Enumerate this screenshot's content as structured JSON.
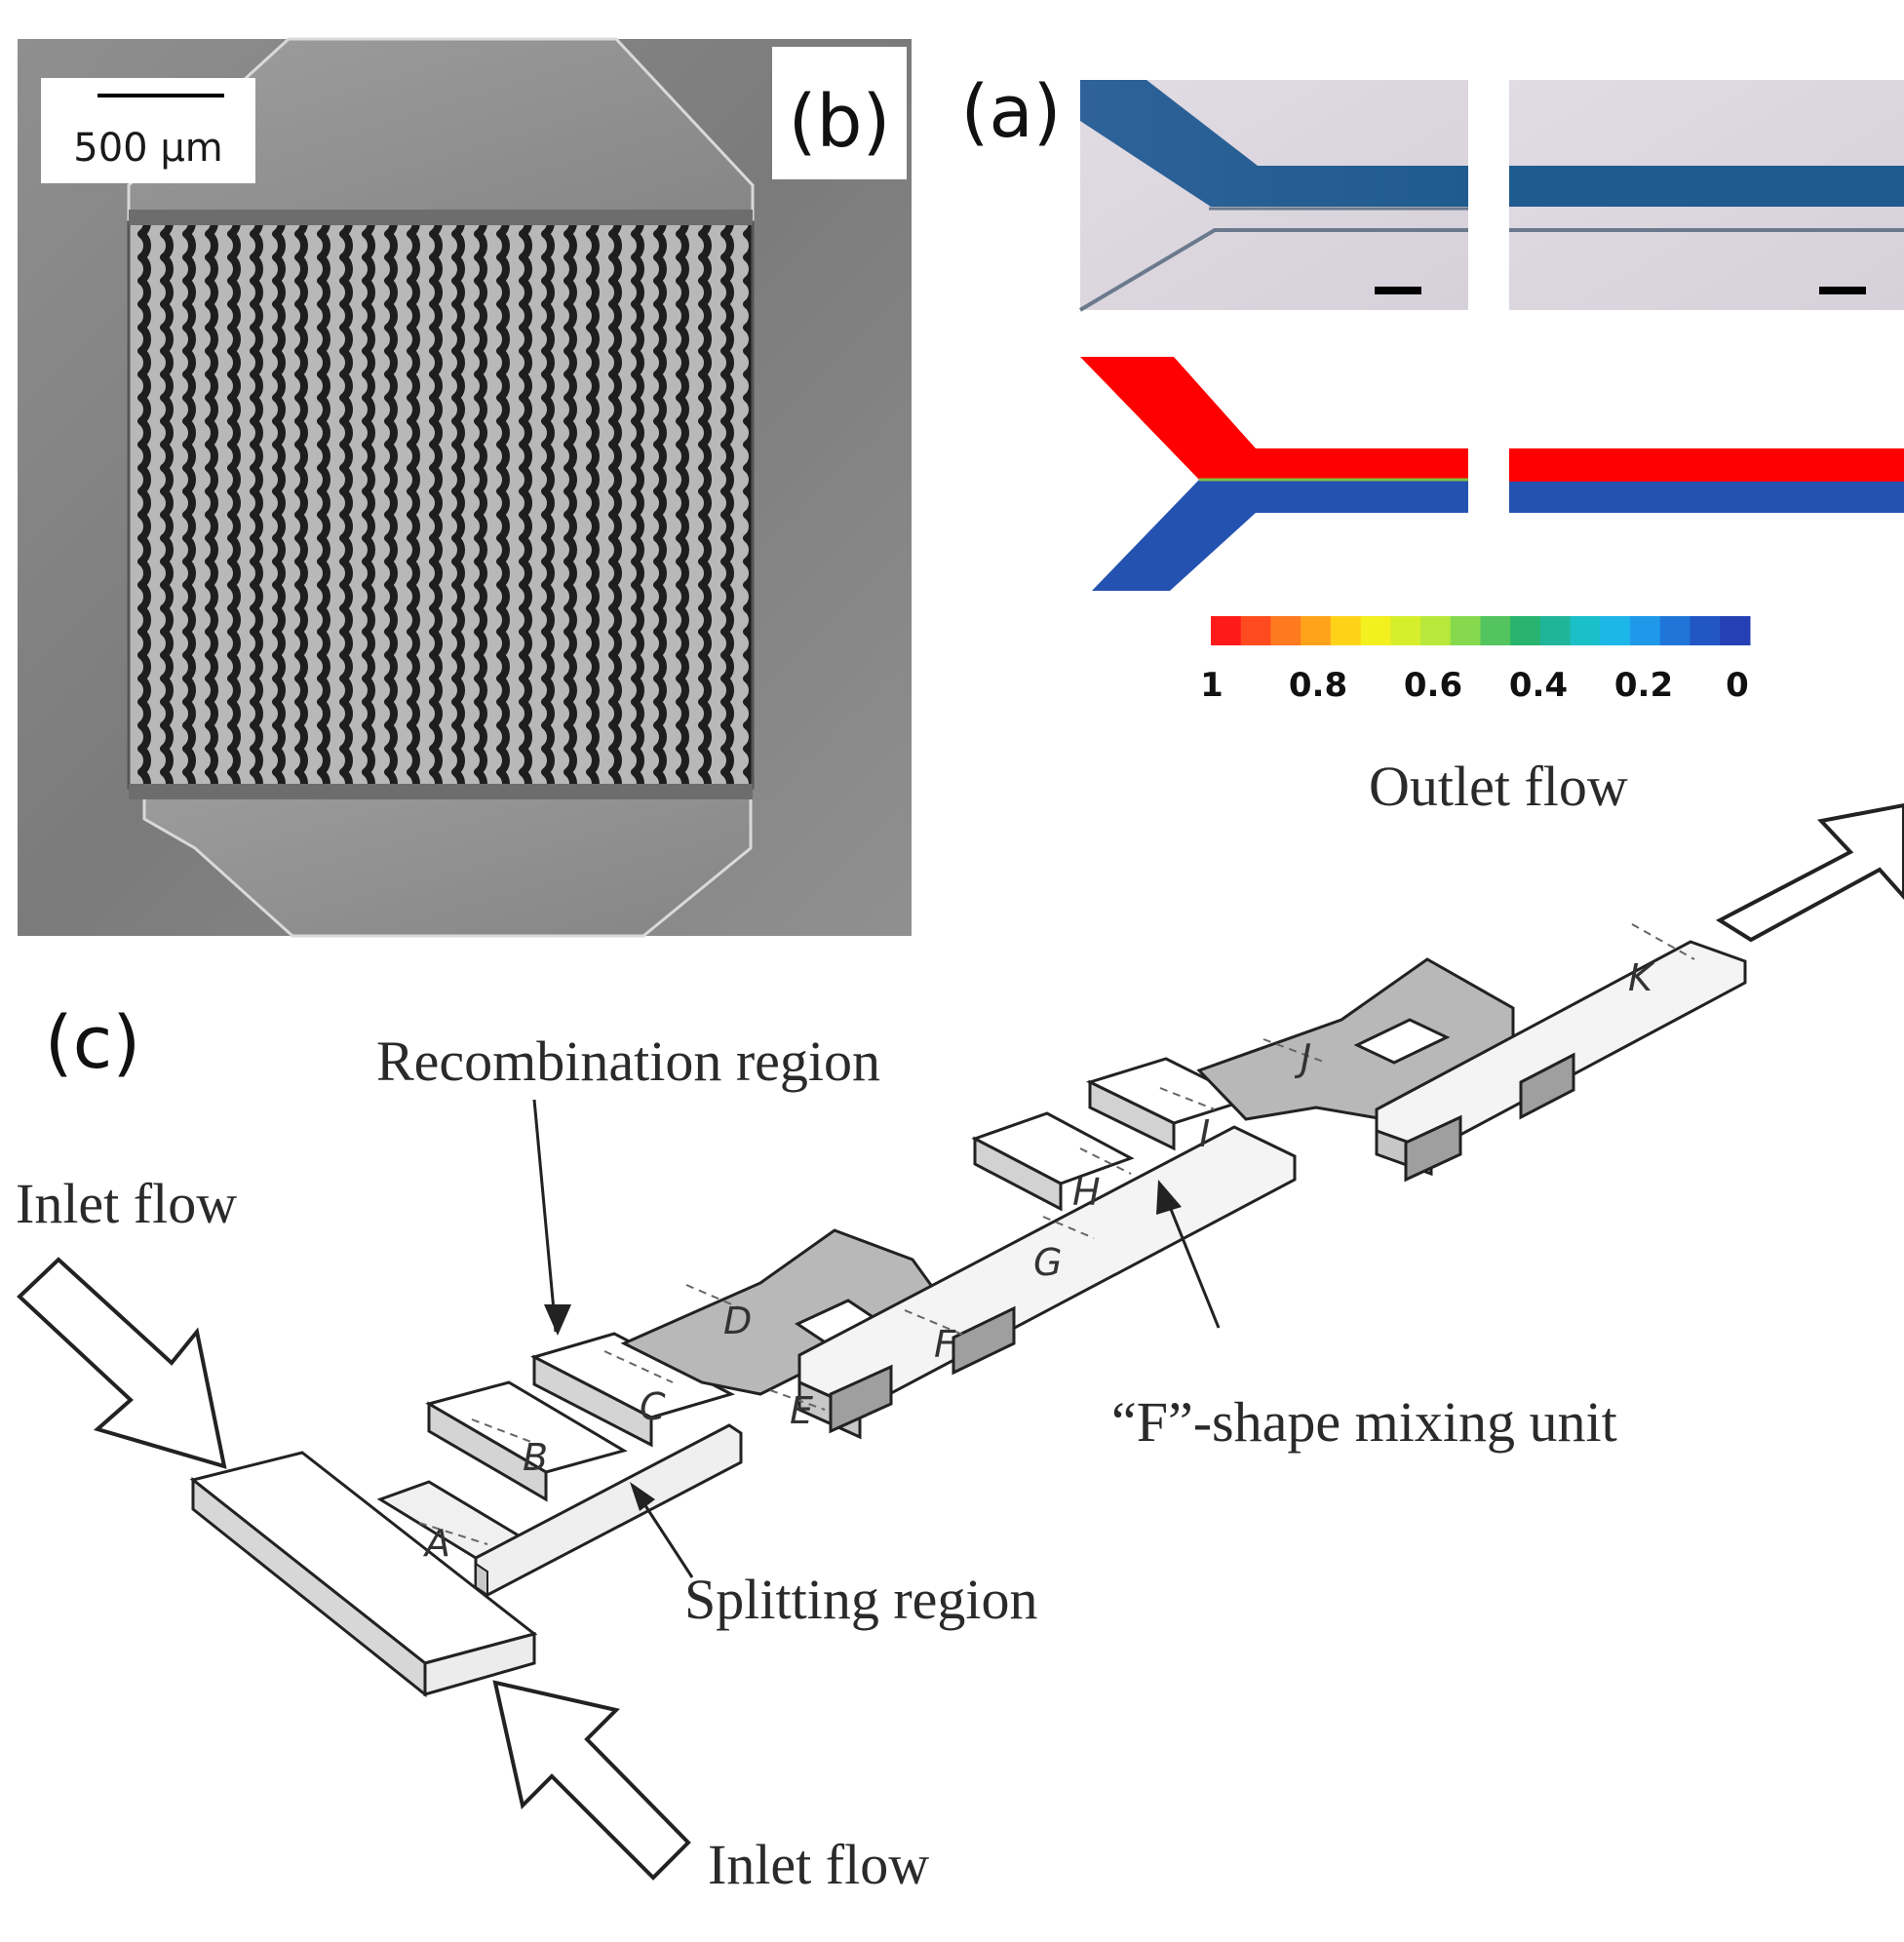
{
  "panels": {
    "b": {
      "label": "(b)",
      "scale_bar": "500 µm"
    },
    "a": {
      "label": "(a)",
      "colorbar_ticks": [
        "1",
        "0.8",
        "0.6",
        "0.4",
        "0.2",
        "0"
      ],
      "colorbar_colors": [
        "#ff1a1a",
        "#ff4a1f",
        "#ff7a1f",
        "#ffa31a",
        "#ffd21a",
        "#f3f01f",
        "#d7ee2c",
        "#b7e83b",
        "#86d94d",
        "#53c45e",
        "#28b46e",
        "#1fb59a",
        "#1abfc8",
        "#1cb6e9",
        "#1f98ea",
        "#1f75d8",
        "#2256c5",
        "#2540b4"
      ]
    },
    "c": {
      "label": "(c)",
      "labels": {
        "recombination": "Recombination region",
        "inlet_1": "Inlet flow",
        "inlet_2": "Inlet flow",
        "splitting": "Splitting region",
        "f_unit": "“F”-shape mixing unit",
        "outlet": "Outlet flow"
      },
      "points": [
        "A",
        "B",
        "C",
        "D",
        "E",
        "F",
        "G",
        "H",
        "I",
        "J",
        "K"
      ]
    }
  }
}
